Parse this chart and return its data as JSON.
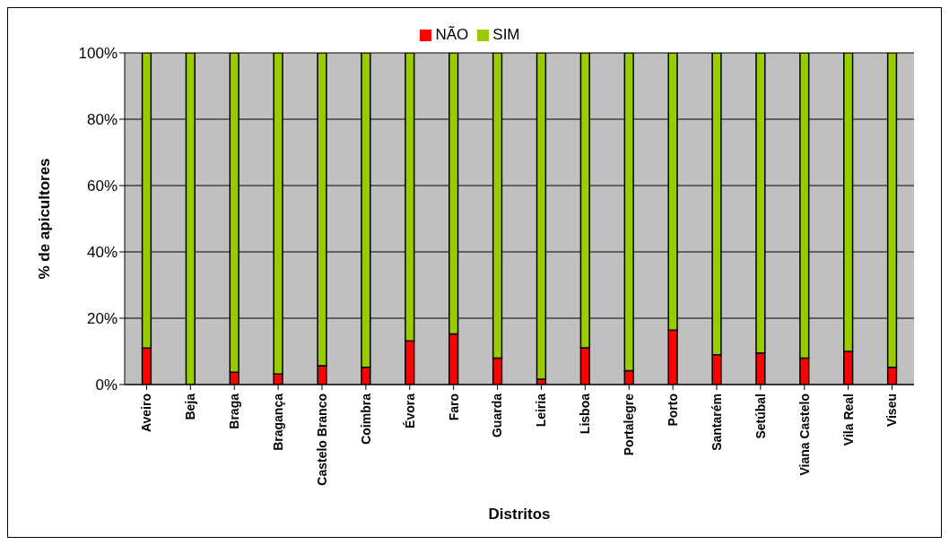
{
  "chart_data": {
    "type": "bar",
    "stacked": true,
    "xlabel": "Distritos",
    "ylabel": "% de apicultores",
    "categories": [
      "Aveiro",
      "Beja",
      "Braga",
      "Bragança",
      "Castelo Branco",
      "Coimbra",
      "Évora",
      "Faro",
      "Guarda",
      "Leiria",
      "Lisboa",
      "Portalegre",
      "Porto",
      "Santarém",
      "Setúbal",
      "Viana Castelo",
      "Vila Real",
      "Viseu"
    ],
    "series": [
      {
        "name": "NÃO",
        "color": "#ff0000",
        "values": [
          11,
          0,
          3.7,
          3.2,
          5.7,
          5.2,
          13.2,
          15.3,
          8,
          1.6,
          11.1,
          4.2,
          16.4,
          9,
          9.5,
          8,
          10,
          5.2
        ]
      },
      {
        "name": "SIM",
        "color": "#99cc00",
        "values": [
          89,
          100,
          96.3,
          96.8,
          94.3,
          94.8,
          86.8,
          84.7,
          92,
          98.4,
          88.9,
          95.8,
          83.6,
          91,
          90.5,
          92,
          90,
          94.8
        ]
      }
    ],
    "ylim": [
      0,
      100
    ],
    "yticks": [
      {
        "value": 0,
        "label": "0%"
      },
      {
        "value": 20,
        "label": "20%"
      },
      {
        "value": 40,
        "label": "40%"
      },
      {
        "value": 60,
        "label": "60%"
      },
      {
        "value": 80,
        "label": "80%"
      },
      {
        "value": 100,
        "label": "100%"
      }
    ],
    "grid": "y",
    "legend": "top"
  }
}
